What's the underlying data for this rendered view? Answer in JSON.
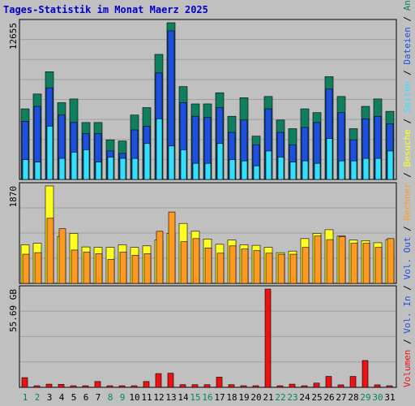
{
  "colors": {
    "background": "#c0c0c0",
    "title": "#0000cc",
    "hits": "#0f7f5f",
    "files": "#1f4fdf",
    "pages": "#33dfff",
    "visits": "#ffff22",
    "sites": "#ff9922",
    "volume": "#ee1111",
    "weekday": "#008855",
    "weekend": "#008855",
    "grid": "#a0a0a0"
  },
  "chart_data": {
    "type": "bar",
    "title": "Tages-Statistik im Monat Maerz 2025",
    "categories": [
      "1",
      "2",
      "3",
      "4",
      "5",
      "6",
      "7",
      "8",
      "9",
      "10",
      "11",
      "12",
      "13",
      "14",
      "15",
      "16",
      "17",
      "18",
      "19",
      "20",
      "21",
      "22",
      "23",
      "24",
      "25",
      "26",
      "27",
      "28",
      "29",
      "30",
      "31"
    ],
    "weekend_days": [
      "1",
      "2",
      "8",
      "9",
      "15",
      "16",
      "22",
      "23",
      "29",
      "30"
    ],
    "panels": [
      {
        "name": "top",
        "ymax_label": "12655",
        "ymax": 12655,
        "series": [
          {
            "key": "hits",
            "name": "Anfragen",
            "values": [
              5700,
              6900,
              8700,
              6200,
              6500,
              4600,
              4600,
              3200,
              3100,
              5200,
              5800,
              10100,
              12655,
              7500,
              6100,
              6100,
              7000,
              5100,
              6600,
              3500,
              6700,
              4800,
              4100,
              5700,
              5400,
              8300,
              6700,
              4100,
              5900,
              6500,
              5500
            ]
          },
          {
            "key": "files",
            "name": "Dateien",
            "values": [
              4700,
              5900,
              7400,
              5200,
              4600,
              3700,
              3700,
              2300,
              2100,
              4000,
              4300,
              8600,
              12000,
              6200,
              5100,
              5000,
              5800,
              3800,
              4800,
              2800,
              5700,
              3800,
              2800,
              4200,
              4600,
              7300,
              5400,
              3200,
              4900,
              5100,
              4500
            ]
          },
          {
            "key": "pages",
            "name": "Seiten",
            "values": [
              1600,
              1400,
              4300,
              1700,
              2200,
              2400,
              1400,
              1800,
              1700,
              1700,
              2900,
              4900,
              2700,
              2400,
              1300,
              1300,
              2900,
              1600,
              1500,
              1100,
              2300,
              1800,
              1400,
              1500,
              1300,
              3300,
              1500,
              1500,
              1700,
              1700,
              2300
            ]
          }
        ]
      },
      {
        "name": "middle",
        "ymax_label": "1870",
        "ymax": 1870,
        "series": [
          {
            "key": "visits",
            "name": "Besuche",
            "values": [
              740,
              770,
              1870,
              900,
              960,
              700,
              690,
              690,
              740,
              690,
              720,
              830,
              960,
              1150,
              1000,
              850,
              750,
              830,
              740,
              730,
              690,
              590,
              620,
              860,
              960,
              1030,
              910,
              830,
              820,
              780,
              840
            ]
          },
          {
            "key": "sites",
            "name": "Rechner",
            "values": [
              560,
              590,
              1250,
              1050,
              640,
              600,
              570,
              460,
              600,
              540,
              570,
              1000,
              1370,
              800,
              860,
              680,
              580,
              720,
              660,
              630,
              580,
              560,
              560,
              690,
              910,
              840,
              900,
              770,
              770,
              690,
              860
            ]
          }
        ]
      },
      {
        "name": "bottom",
        "ymax_label": "55.69 GB",
        "ymax": 55.69,
        "series": [
          {
            "key": "volume",
            "name": "Volumen",
            "values": [
              5.5,
              0.9,
              1.8,
              1.7,
              0.9,
              0.9,
              3.3,
              0.9,
              0.9,
              0.9,
              3.3,
              7.8,
              8.0,
              1.5,
              1.5,
              1.5,
              5.8,
              1.5,
              0.9,
              0.9,
              55.69,
              0.9,
              1.8,
              0.9,
              2.4,
              6.2,
              1.4,
              6.2,
              15.2,
              1.4,
              0.9
            ]
          }
        ]
      }
    ],
    "right_labels": [
      {
        "key": "volume",
        "text": "Volumen"
      },
      {
        "key": "sep",
        "text": " / "
      },
      {
        "key": "files",
        "text": "Vol. In"
      },
      {
        "key": "sep",
        "text": " / "
      },
      {
        "key": "files",
        "text": "Vol. Out"
      },
      {
        "key": "sep",
        "text": " / "
      },
      {
        "key": "sites",
        "text": "Rechner"
      },
      {
        "key": "sep",
        "text": " / "
      },
      {
        "key": "visits",
        "text": "Besuche"
      },
      {
        "key": "sep",
        "text": " / "
      },
      {
        "key": "pages",
        "text": "Seiten"
      },
      {
        "key": "sep",
        "text": " / "
      },
      {
        "key": "files",
        "text": "Dateien"
      },
      {
        "key": "sep",
        "text": " / "
      },
      {
        "key": "hits",
        "text": "Anfragen"
      }
    ]
  }
}
